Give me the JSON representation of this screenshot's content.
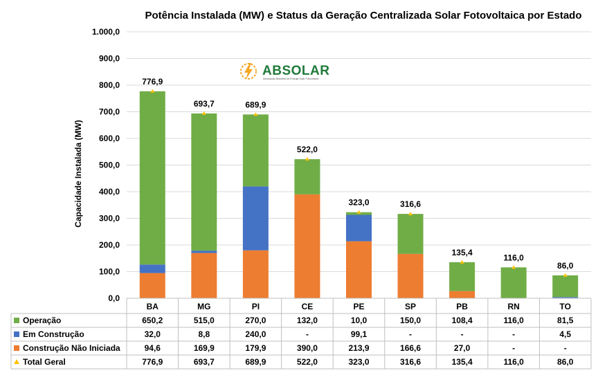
{
  "chart_data": {
    "type": "bar",
    "stacked": true,
    "title": "Potência Instalada (MW) e Status da Geração Centralizada Solar Fotovoltaica por Estado",
    "ylabel": "Capacidade Instalada (MW)",
    "xlabel": "",
    "ylim": [
      0,
      1000
    ],
    "yticks": [
      "0,0",
      "100,0",
      "200,0",
      "300,0",
      "400,0",
      "500,0",
      "600,0",
      "700,0",
      "800,0",
      "900,0",
      "1.000,0"
    ],
    "categories": [
      "BA",
      "MG",
      "PI",
      "CE",
      "PE",
      "SP",
      "PB",
      "RN",
      "TO"
    ],
    "series": [
      {
        "name": "Construção Não Iniciada",
        "color": "#ed7d31",
        "values": [
          94.6,
          169.9,
          179.9,
          390.0,
          213.9,
          166.6,
          27.0,
          0,
          0
        ],
        "labels": [
          "94,6",
          "169,9",
          "179,9",
          "390,0",
          "213,9",
          "166,6",
          "27,0",
          "-",
          "-"
        ]
      },
      {
        "name": "Em Construção",
        "color": "#4472c4",
        "values": [
          32.0,
          8.8,
          240.0,
          0,
          99.1,
          0,
          0,
          0,
          4.5
        ],
        "labels": [
          "32,0",
          "8,8",
          "240,0",
          "-",
          "99,1",
          "-",
          "-",
          "-",
          "4,5"
        ]
      },
      {
        "name": "Operação",
        "color": "#70ad47",
        "values": [
          650.2,
          515.0,
          270.0,
          132.0,
          10.0,
          150.0,
          108.4,
          116.0,
          81.5
        ],
        "labels": [
          "650,2",
          "515,0",
          "270,0",
          "132,0",
          "10,0",
          "150,0",
          "108,4",
          "116,0",
          "81,5"
        ]
      }
    ],
    "totals": {
      "name": "Total Geral",
      "color": "#ffc000",
      "values": [
        776.9,
        693.7,
        689.9,
        522.0,
        323.0,
        316.6,
        135.4,
        116.0,
        86.0
      ],
      "labels": [
        "776,9",
        "693,7",
        "689,9",
        "522,0",
        "323,0",
        "316,6",
        "135,4",
        "116,0",
        "86,0"
      ]
    },
    "table_row_order": [
      "Operação",
      "Em Construção",
      "Construção Não Iniciada",
      "Total Geral"
    ],
    "legend": "data-table"
  },
  "logo": {
    "name": "ABSOLAR",
    "subtitle": "Associação Brasileira de Energia Solar Fotovoltaica"
  }
}
